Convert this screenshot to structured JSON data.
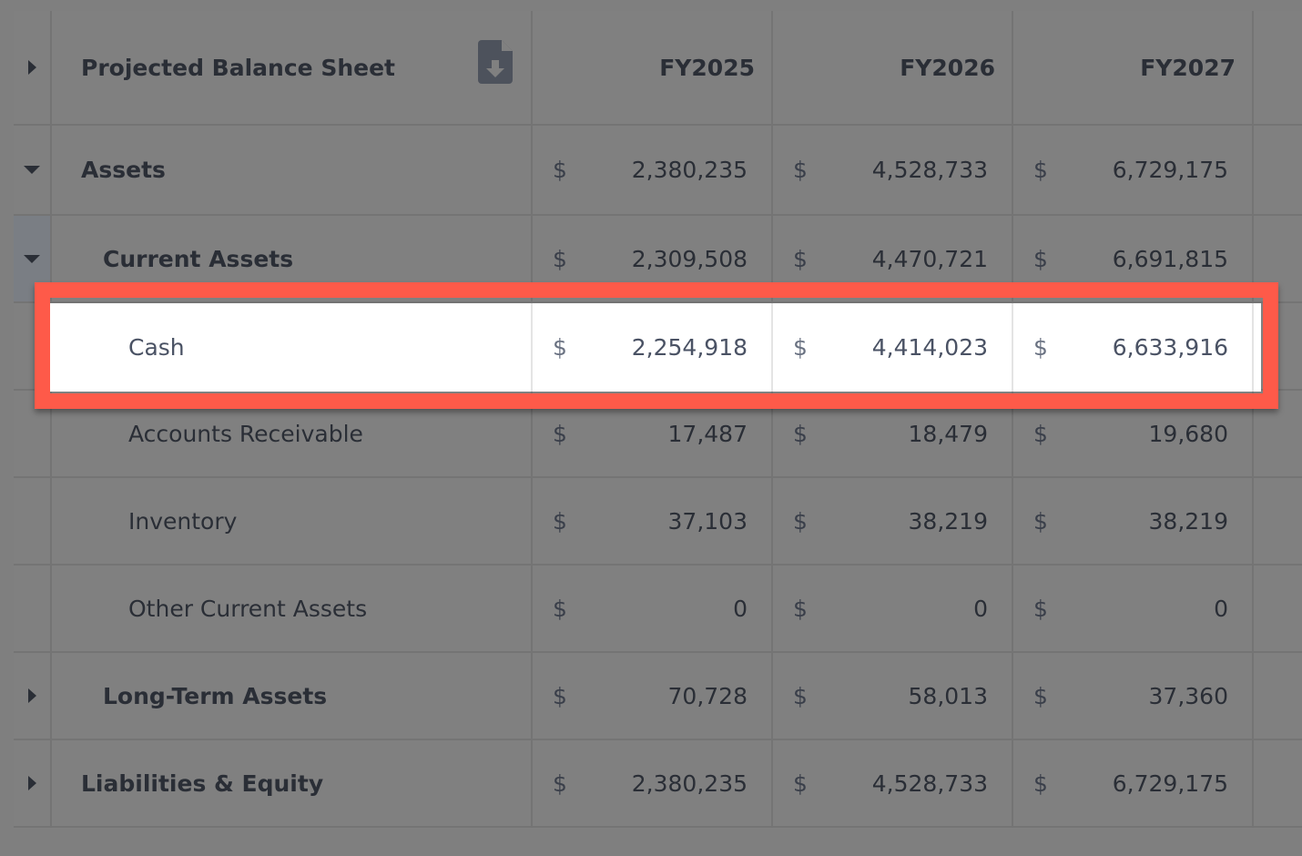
{
  "header": {
    "title": "Projected Balance Sheet",
    "export_icon": "file-download-icon",
    "columns": [
      "FY2025",
      "FY2026",
      "FY2027"
    ]
  },
  "currency_symbol": "$",
  "rows": [
    {
      "label": "Assets",
      "level": 0,
      "toggle": "expanded",
      "values": [
        "2,380,235",
        "4,528,733",
        "6,729,175"
      ]
    },
    {
      "label": "Current Assets",
      "level": 1,
      "toggle": "expanded",
      "values": [
        "2,309,508",
        "4,470,721",
        "6,691,815"
      ]
    },
    {
      "label": "Cash",
      "level": 2,
      "toggle": "none",
      "highlighted": true,
      "values": [
        "2,254,918",
        "4,414,023",
        "6,633,916"
      ]
    },
    {
      "label": "Accounts Receivable",
      "level": 2,
      "toggle": "none",
      "values": [
        "17,487",
        "18,479",
        "19,680"
      ]
    },
    {
      "label": "Inventory",
      "level": 2,
      "toggle": "none",
      "values": [
        "37,103",
        "38,219",
        "38,219"
      ]
    },
    {
      "label": "Other Current Assets",
      "level": 2,
      "toggle": "none",
      "values": [
        "0",
        "0",
        "0"
      ]
    },
    {
      "label": "Long-Term Assets",
      "level": 1,
      "toggle": "collapsed",
      "values": [
        "70,728",
        "58,013",
        "37,360"
      ]
    },
    {
      "label": "Liabilities & Equity",
      "level": 0,
      "toggle": "collapsed",
      "values": [
        "2,380,235",
        "4,528,733",
        "6,729,175"
      ]
    }
  ],
  "colors": {
    "highlight_border": "#fe5a49",
    "overlay": "#808080"
  }
}
